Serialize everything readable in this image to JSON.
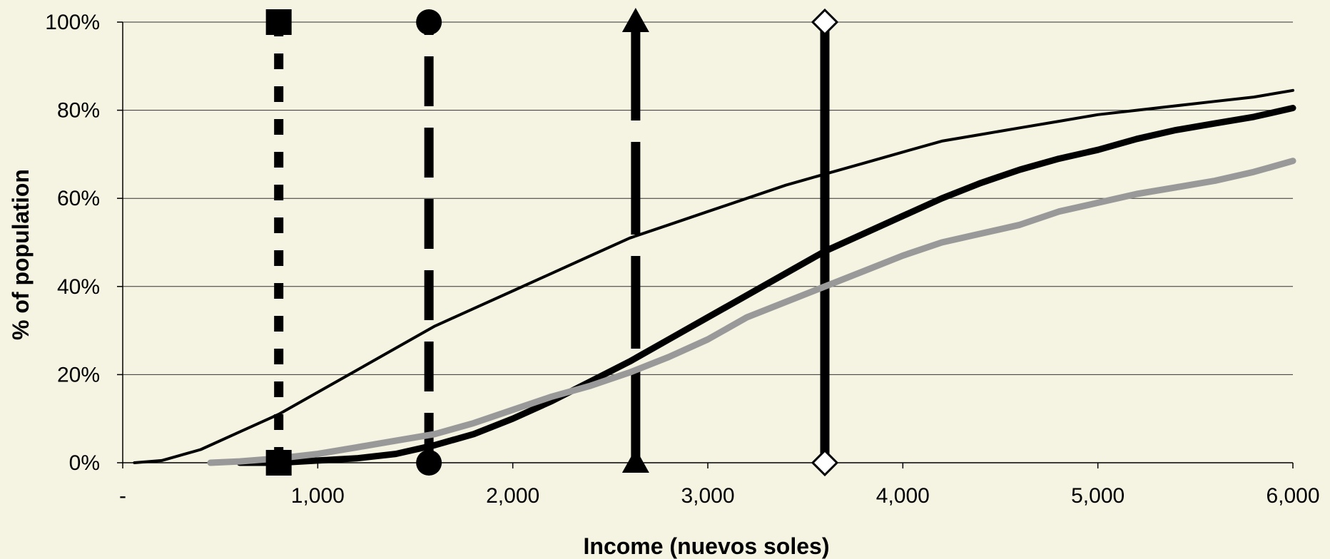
{
  "chart_data": {
    "type": "line",
    "title": "",
    "xlabel": "Income (nuevos soles)",
    "ylabel": "% of population",
    "xlim": [
      0,
      6000
    ],
    "ylim": [
      0,
      100
    ],
    "grid": {
      "horizontal": true,
      "vertical": false
    },
    "x_ticks": [
      {
        "value": 0,
        "label": "-"
      },
      {
        "value": 1000,
        "label": "1,000"
      },
      {
        "value": 2000,
        "label": "2,000"
      },
      {
        "value": 3000,
        "label": "3,000"
      },
      {
        "value": 4000,
        "label": "4,000"
      },
      {
        "value": 5000,
        "label": "5,000"
      },
      {
        "value": 6000,
        "label": "6,000"
      }
    ],
    "y_ticks": [
      {
        "value": 0,
        "label": "0%"
      },
      {
        "value": 20,
        "label": "20%"
      },
      {
        "value": 40,
        "label": "40%"
      },
      {
        "value": 60,
        "label": "60%"
      },
      {
        "value": 80,
        "label": "80%"
      },
      {
        "value": 100,
        "label": "100%"
      }
    ],
    "series": [
      {
        "color": "#000000",
        "style": "thin",
        "x": [
          60,
          200,
          400,
          600,
          800,
          1000,
          1200,
          1400,
          1600,
          1800,
          2000,
          2200,
          2400,
          2600,
          2800,
          3000,
          3200,
          3400,
          3600,
          3800,
          4000,
          4200,
          4400,
          4600,
          4800,
          5000,
          5200,
          5400,
          5600,
          5800,
          6000
        ],
        "y": [
          0,
          0.5,
          3,
          7,
          11,
          16,
          21,
          26,
          31,
          35,
          39,
          43,
          47,
          51,
          54,
          57,
          60,
          63,
          65.5,
          68,
          70.5,
          73,
          74.5,
          76,
          77.5,
          79,
          80,
          81,
          82,
          83,
          84.5
        ]
      },
      {
        "color": "#000000",
        "style": "thick",
        "x": [
          600,
          800,
          1000,
          1200,
          1400,
          1600,
          1800,
          2000,
          2200,
          2400,
          2600,
          2800,
          3000,
          3200,
          3400,
          3600,
          3800,
          4000,
          4200,
          4400,
          4600,
          4800,
          5000,
          5200,
          5400,
          5600,
          5800,
          6000
        ],
        "y": [
          0,
          0,
          0.5,
          1,
          2,
          4,
          6.5,
          10,
          14,
          18.5,
          23,
          28,
          33,
          38,
          43,
          48,
          52,
          56,
          60,
          63.5,
          66.5,
          69,
          71,
          73.5,
          75.5,
          77,
          78.5,
          80.5
        ]
      },
      {
        "color": "#999999",
        "style": "thick",
        "x": [
          450,
          600,
          800,
          1000,
          1200,
          1400,
          1600,
          1800,
          2000,
          2200,
          2400,
          2600,
          2800,
          3000,
          3200,
          3400,
          3600,
          3800,
          4000,
          4200,
          4400,
          4600,
          4800,
          5000,
          5200,
          5400,
          5600,
          5800,
          6000
        ],
        "y": [
          0,
          0.3,
          1,
          2,
          3.5,
          5,
          6.5,
          9,
          12,
          15,
          17.5,
          20.5,
          24,
          28,
          33,
          36.5,
          40,
          43.5,
          47,
          50,
          52,
          54,
          57,
          59,
          61,
          62.5,
          64,
          66,
          68.5
        ]
      }
    ],
    "reference_lines": [
      {
        "x": 800,
        "y_range": [
          0,
          100
        ],
        "dash": "short",
        "marker": "square"
      },
      {
        "x": 1570,
        "y_range": [
          0,
          100
        ],
        "dash": "medium",
        "marker": "circle"
      },
      {
        "x": 2630,
        "y_range": [
          0,
          100
        ],
        "dash": "long",
        "marker": "triangle"
      },
      {
        "x": 3600,
        "y_range": [
          0,
          100
        ],
        "dash": "solid",
        "marker": "diamond-open"
      }
    ]
  }
}
